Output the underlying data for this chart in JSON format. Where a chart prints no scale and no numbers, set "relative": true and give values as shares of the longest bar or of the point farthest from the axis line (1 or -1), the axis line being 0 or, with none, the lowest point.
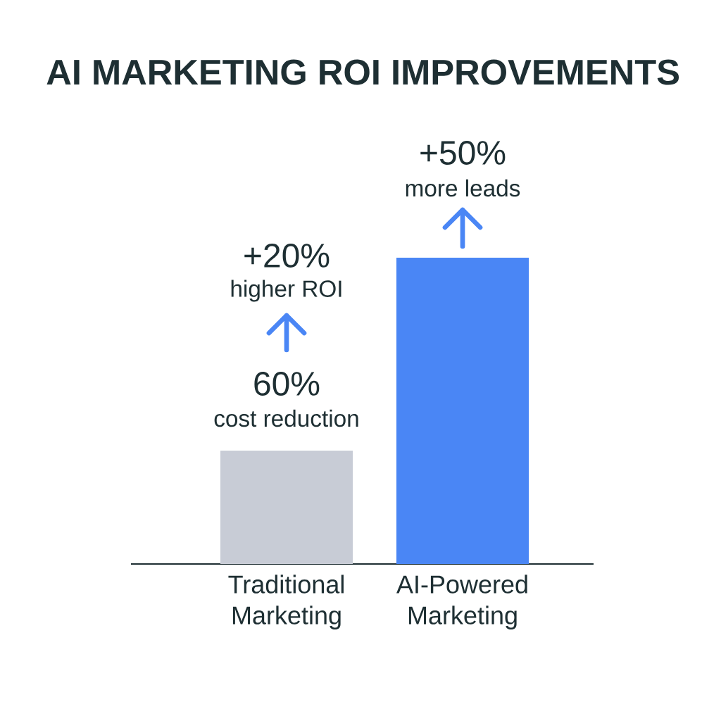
{
  "chart_data": {
    "type": "bar",
    "title": "AI MARKETING ROI IMPROVEMENTS",
    "categories": [
      "Traditional Marketing",
      "AI-Powered Marketing"
    ],
    "values": [
      0.37,
      1
    ],
    "colors": [
      "#c8ccd6",
      "#4a86f5"
    ],
    "relative": true,
    "annotations": [
      "+50%",
      "more leads",
      "+20%",
      "higher ROI",
      "60%",
      "cost reduction"
    ]
  }
}
